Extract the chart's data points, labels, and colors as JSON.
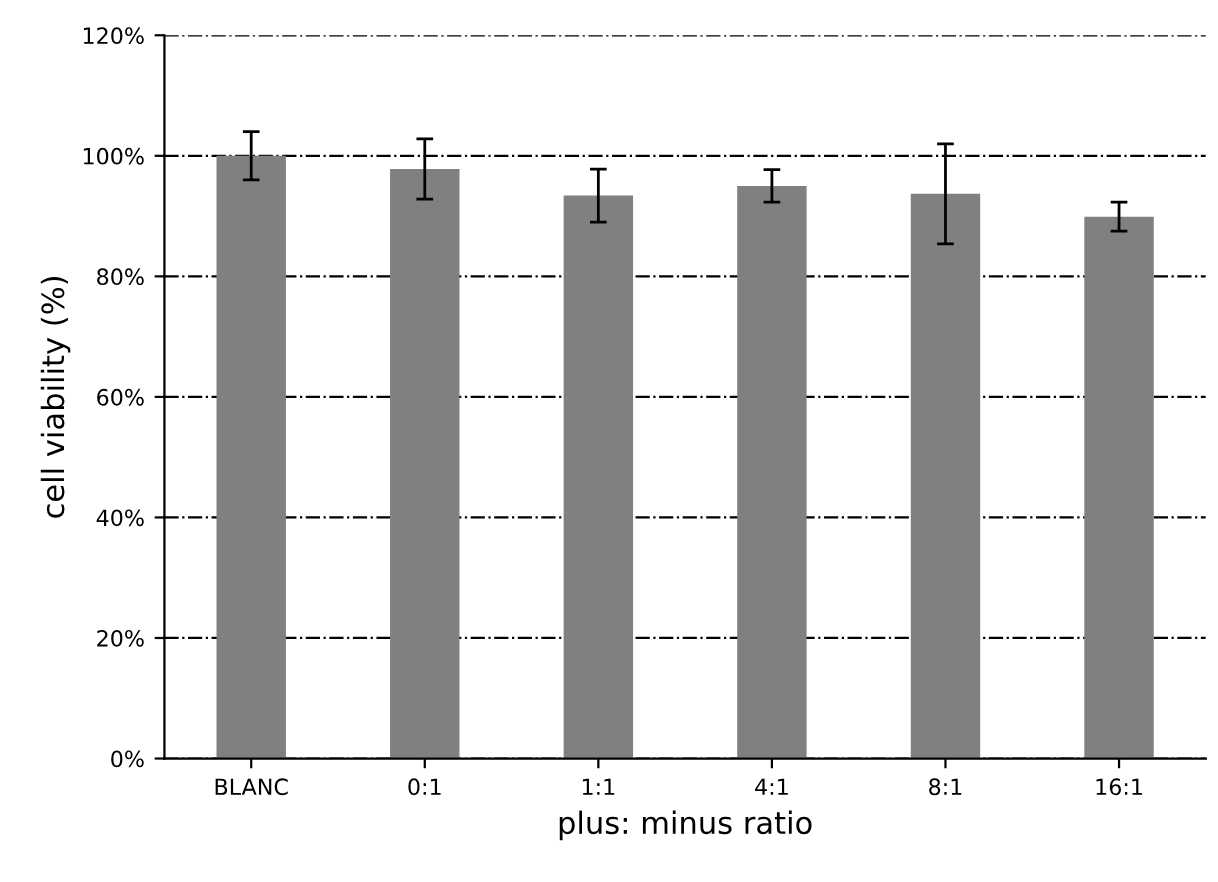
{
  "chart_data": {
    "type": "bar",
    "xlabel": "plus: minus ratio",
    "ylabel": "cell viability (%)",
    "categories": [
      "BLANC",
      "0:1",
      "1:1",
      "4:1",
      "8:1",
      "16:1"
    ],
    "values": [
      100,
      97.8,
      93.4,
      95,
      93.7,
      89.9
    ],
    "errors": [
      4,
      5,
      4.4,
      2.7,
      8.3,
      2.4
    ],
    "color": "#808080",
    "ylim": [
      0,
      120
    ],
    "yticks": [
      {
        "value": 0,
        "label": "0%"
      },
      {
        "value": 20,
        "label": "20%"
      },
      {
        "value": 40,
        "label": "40%"
      },
      {
        "value": 60,
        "label": "60%"
      },
      {
        "value": 80,
        "label": "80%"
      },
      {
        "value": 100,
        "label": "100%"
      },
      {
        "value": 120,
        "label": "120%"
      }
    ],
    "grid": "y",
    "legend": false
  }
}
